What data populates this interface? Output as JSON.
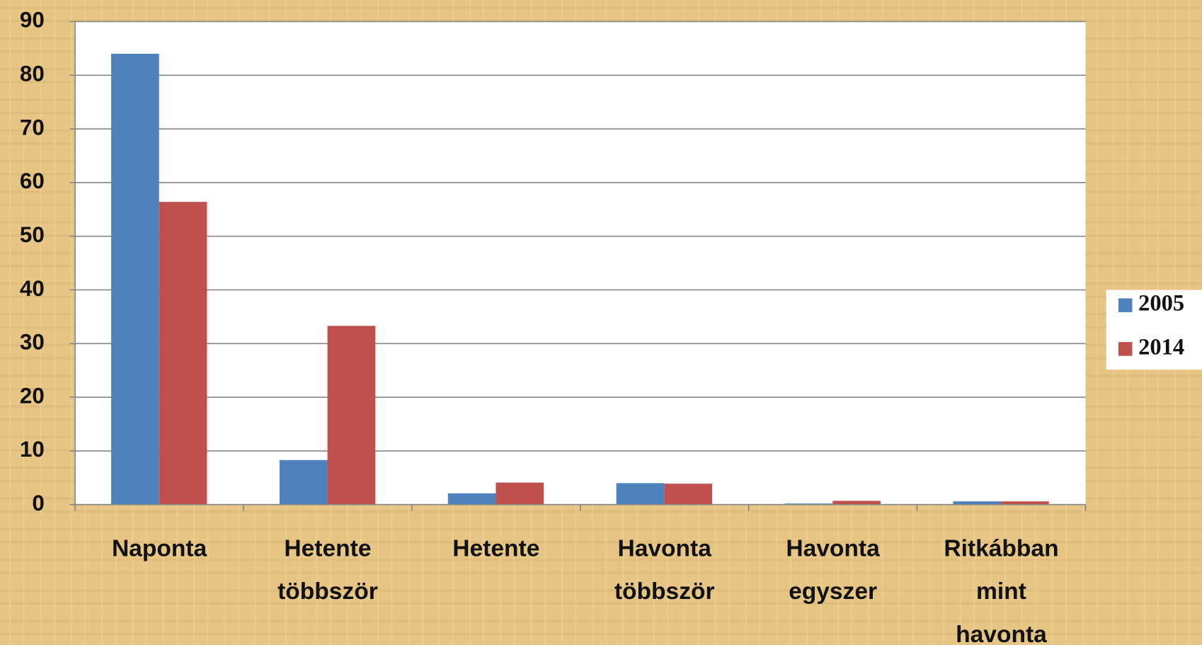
{
  "chart_data": {
    "type": "bar",
    "categories": [
      "Naponta",
      "Hetente többször",
      "Hetente",
      "Havonta többször",
      "Havonta egyszer",
      "Ritkábban mint havonta"
    ],
    "series": [
      {
        "name": "2005",
        "color": "#4f81bd",
        "values": [
          84,
          8.3,
          2.1,
          4.0,
          0.2,
          0.6
        ]
      },
      {
        "name": "2014",
        "color": "#c0504d",
        "values": [
          56.4,
          33.3,
          4.1,
          3.9,
          0.7,
          0.6
        ]
      }
    ],
    "ylim": [
      0,
      90
    ],
    "yticks": [
      0,
      10,
      20,
      30,
      40,
      50,
      60,
      70,
      80,
      90
    ],
    "grid": true,
    "legend": "right"
  }
}
